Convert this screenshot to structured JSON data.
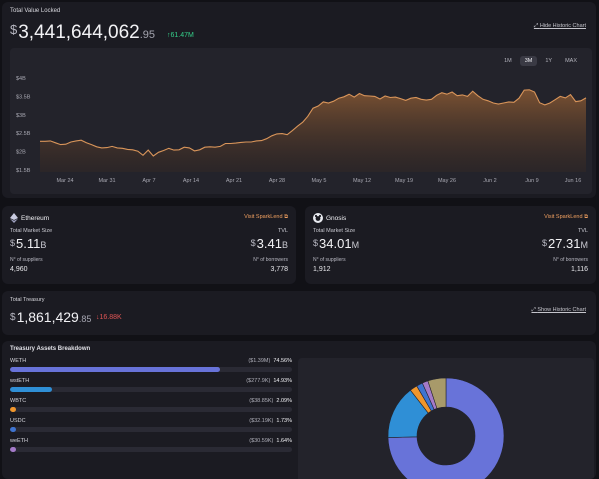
{
  "tvl": {
    "title": "Total Value Locked",
    "hide_link": "Hide Historic Chart",
    "value_main": "3,441,644,062",
    "value_decimals": ".95",
    "change": "↑61.47M",
    "ranges": [
      "1M",
      "3M",
      "1Y",
      "MAX"
    ],
    "active_range": "3M",
    "currency_symbol": "$"
  },
  "chart_data": {
    "type": "area",
    "title": "",
    "xlabel": "",
    "ylabel": "",
    "y_tick_labels": [
      "$4B",
      "$3.5B",
      "$3B",
      "$2.5B",
      "$2B",
      "$1.5B"
    ],
    "y_ticks": [
      4,
      3.5,
      3,
      2.5,
      2,
      1.5
    ],
    "ylim": [
      1.5,
      4.2
    ],
    "x_tick_labels": [
      "Mar 24",
      "Mar 31",
      "Apr 7",
      "Apr 14",
      "Apr 21",
      "Apr 28",
      "May 5",
      "May 12",
      "May 19",
      "May 26",
      "Jun 2",
      "Jun 9",
      "Jun 16"
    ],
    "grid": false,
    "line_color": "#d9955a",
    "series": [
      {
        "values": [
          2.28,
          2.28,
          2.29,
          2.24,
          2.19,
          2.2,
          2.26,
          2.29,
          2.31,
          2.24,
          2.19,
          2.13,
          2.1,
          2.11,
          2.14,
          2.1,
          2.09,
          2.06,
          2.05,
          2.01,
          1.9,
          2.04,
          1.88,
          1.98,
          2.03,
          2.09,
          2.04,
          2.05,
          2.12,
          2.1,
          2.02,
          2.05,
          2.12,
          2.13,
          2.12,
          2.14,
          2.22,
          2.22,
          2.23,
          2.25,
          2.26,
          2.26,
          2.29,
          2.3,
          2.35,
          2.43,
          2.48,
          2.49,
          2.46,
          2.57,
          2.69,
          2.8,
          2.96,
          3.18,
          3.24,
          3.35,
          3.32,
          3.37,
          3.45,
          3.49,
          3.56,
          3.48,
          3.58,
          3.52,
          3.51,
          3.5,
          3.43,
          3.51,
          3.47,
          3.48,
          3.44,
          3.39,
          3.45,
          3.47,
          3.42,
          3.4,
          3.42,
          3.53,
          3.6,
          3.56,
          3.62,
          3.52,
          3.54,
          3.5,
          3.64,
          3.52,
          3.42,
          3.38,
          3.32,
          3.29,
          3.32,
          3.35,
          3.34,
          3.45,
          3.67,
          3.68,
          3.62,
          3.33,
          3.27,
          3.32,
          3.41,
          3.5,
          3.46,
          3.55,
          3.36,
          3.38,
          3.46
        ]
      }
    ]
  },
  "networks": [
    {
      "name": "Ethereum",
      "icon": "ethereum-icon",
      "visit_label": "Visit SparkLend",
      "market_size_label": "Total Market Size",
      "market_size_value": "5.11",
      "market_size_unit": "B",
      "tvl_label": "TVL",
      "tvl_value": "3.41",
      "tvl_unit": "B",
      "suppliers_label": "N° of suppliers",
      "suppliers_value": "4,960",
      "borrowers_label": "N° of borrowers",
      "borrowers_value": "3,778",
      "currency_symbol": "$"
    },
    {
      "name": "Gnosis",
      "icon": "gnosis-icon",
      "visit_label": "Visit SparkLend",
      "market_size_label": "Total Market Size",
      "market_size_value": "34.01",
      "market_size_unit": "M",
      "tvl_label": "TVL",
      "tvl_value": "27.31",
      "tvl_unit": "M",
      "suppliers_label": "N° of suppliers",
      "suppliers_value": "1,912",
      "borrowers_label": "N° of borrowers",
      "borrowers_value": "1,116",
      "currency_symbol": "$"
    }
  ],
  "treasury": {
    "title": "Total Treasury",
    "value_main": "1,861,429",
    "value_decimals": ".85",
    "change": "↓16.88K",
    "show_link": "Show Historic Chart",
    "currency_symbol": "$"
  },
  "breakdown": {
    "title": "Treasury Assets Breakdown",
    "assets": [
      {
        "name": "WETH",
        "value": "($1.39M)",
        "pct_label": "74.56%",
        "fraction": 0.7456,
        "color": "#6873d9"
      },
      {
        "name": "wstETH",
        "value": "($277.9K)",
        "pct_label": "14.93%",
        "fraction": 0.1493,
        "color": "#2f8fd6"
      },
      {
        "name": "WBTC",
        "value": "($38.85K)",
        "pct_label": "2.09%",
        "fraction": 0.0209,
        "color": "#f0962c"
      },
      {
        "name": "USDC",
        "value": "($32.19K)",
        "pct_label": "1.73%",
        "fraction": 0.0173,
        "color": "#3f74d0"
      },
      {
        "name": "weETH",
        "value": "($30.59K)",
        "pct_label": "1.64%",
        "fraction": 0.0164,
        "color": "#a47ac8"
      }
    ],
    "other_fraction": 0.0505,
    "other_color": "#a89a6a"
  }
}
